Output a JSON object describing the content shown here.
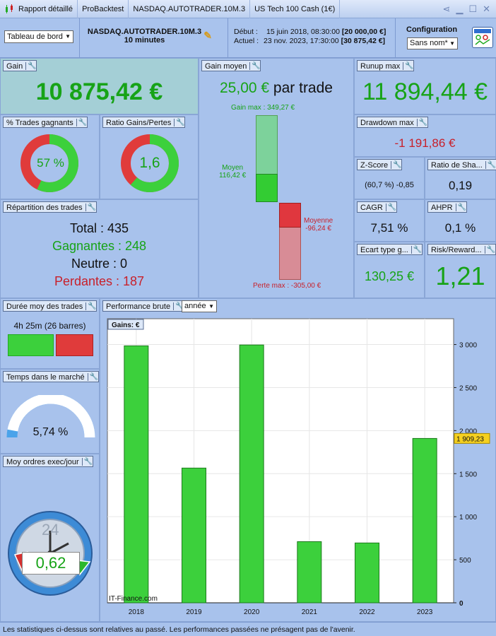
{
  "titlebar": {
    "tabs": [
      "Rapport détaillé",
      "ProBacktest",
      "NASDAQ.AUTOTRADER.10M.3",
      "US Tech 100 Cash (1€)"
    ]
  },
  "header": {
    "view_select": "Tableau de bord",
    "system_name": "NASDAQ.AUTOTRADER.10M.3",
    "timeframe": "10 minutes",
    "start_label": "Début :",
    "start_date": "15 juin 2018, 08:30:00",
    "start_value": "[20 000,00 €]",
    "current_label": "Actuel :",
    "current_date": "23 nov. 2023, 17:30:00",
    "current_value": "[30 875,42 €]",
    "config_label": "Configuration",
    "config_select": "Sans nom*"
  },
  "gain": {
    "title": "Gain",
    "value": "10 875,42 €"
  },
  "gain_moyen": {
    "title": "Gain moyen",
    "value": "25,00 €",
    "suffix": "par trade",
    "gain_max": "Gain max : 349,27 €",
    "moyen_label": "Moyen",
    "moyen_value": "116,42 €",
    "moyenne_label": "Moyenne",
    "moyenne_value": "-96,24 €",
    "perte_max": "Perte max : -305,00 €"
  },
  "runup": {
    "title": "Runup max",
    "value": "11 894,44 €"
  },
  "win_pct": {
    "title": "% Trades gagnants",
    "value": "57 %",
    "fraction": 0.57
  },
  "ratio": {
    "title": "Ratio Gains/Pertes",
    "value": "1,6",
    "fraction": 0.615
  },
  "drawdown": {
    "title": "Drawdown max",
    "value": "-1 191,86 €"
  },
  "zscore": {
    "title": "Z-Score",
    "value": "(60,7 %) -0,85"
  },
  "sharpe": {
    "title": "Ratio de Sha...",
    "value": "0,19"
  },
  "repartition": {
    "title": "Répartition des trades",
    "total": "Total : 435",
    "gagnantes": "Gagnantes : 248",
    "neutre": "Neutre : 0",
    "perdantes": "Perdantes : 187"
  },
  "cagr": {
    "title": "CAGR",
    "value": "7,51 %"
  },
  "ahpr": {
    "title": "AHPR",
    "value": "0,1 %"
  },
  "ecart": {
    "title": "Ecart type g...",
    "value": "130,25 €"
  },
  "risk": {
    "title": "Risk/Reward...",
    "value": "1,21"
  },
  "duree": {
    "title": "Durée moy des trades",
    "value": "4h 25m (26 barres)"
  },
  "temps": {
    "title": "Temps dans le marché",
    "value": "5,74 %",
    "fraction": 0.0574
  },
  "ordres": {
    "title": "Moy ordres exec/jour",
    "value": "0,62",
    "clock_label": "24"
  },
  "perf": {
    "title": "Performance brute",
    "period_select": "année",
    "legend": "Gains: €",
    "watermark": "IT-Finance.com",
    "last_value_tag": "1 909,23"
  },
  "chart_data": {
    "type": "bar",
    "categories": [
      "2018",
      "2019",
      "2020",
      "2021",
      "2022",
      "2023"
    ],
    "values": [
      2985,
      1565,
      2995,
      710,
      695,
      1909.23
    ],
    "ylim": [
      0,
      3300
    ],
    "yticks": [
      0,
      500,
      1000,
      1500,
      2000,
      2500,
      3000
    ],
    "ytick_labels": [
      "0",
      "500",
      "1 000",
      "1 500",
      "2 000",
      "2 500",
      "3 000"
    ],
    "bar_color": "#3cd03c",
    "grid": true
  },
  "footer": {
    "text": "Les statistiques ci-dessus sont relatives au passé. Les performances passées ne présagent pas de l'avenir."
  },
  "colors": {
    "green": "#17a317",
    "red": "#c8202a",
    "panel": "#a8c2ec"
  }
}
